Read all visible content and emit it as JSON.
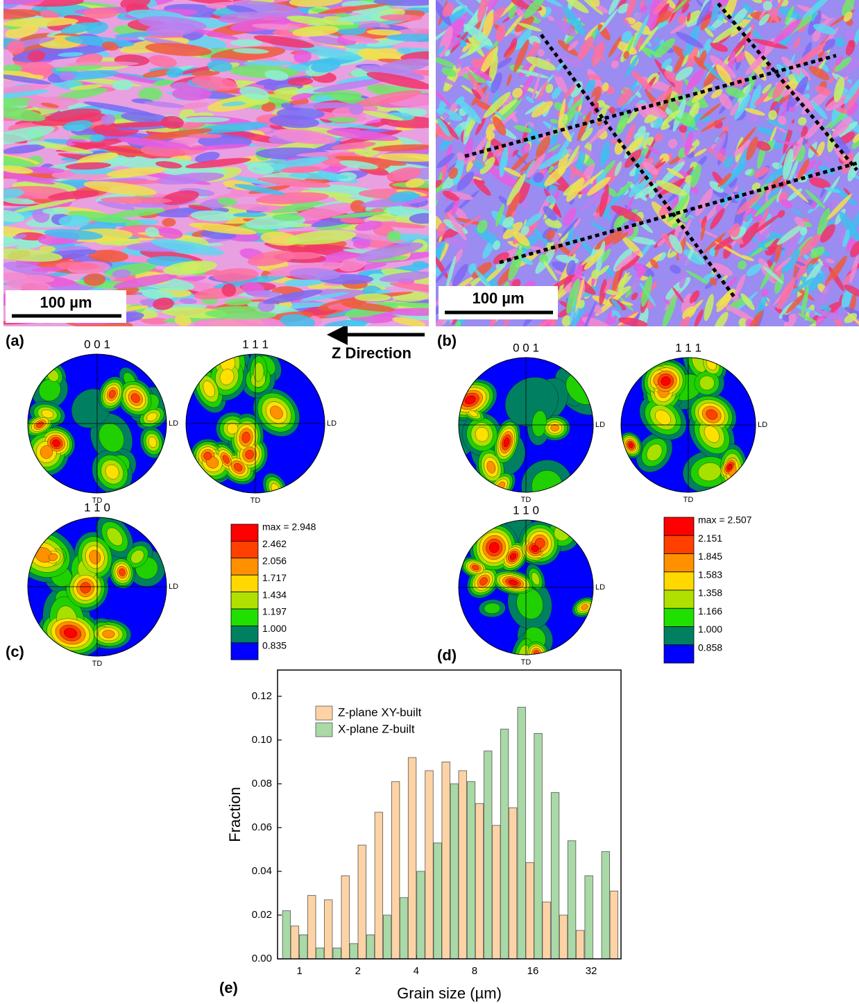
{
  "maps": {
    "a": {
      "label": "(a)",
      "scale_bar": "100 µm"
    },
    "b": {
      "label": "(b)",
      "scale_bar": "100 µm"
    },
    "direction": "Z Direction"
  },
  "pole_figures": [
    {
      "label": "(c)",
      "planes": [
        "0 0 1",
        "1 1 1",
        "1 1 0"
      ],
      "ld": "LD",
      "td": "TD",
      "legend": [
        "max = 2.948",
        "2.462",
        "2.056",
        "1.717",
        "1.434",
        "1.197",
        "1.000",
        "0.835"
      ]
    },
    {
      "label": "(d)",
      "planes": [
        "0 0 1",
        "1 1 1",
        "1 1 0"
      ],
      "ld": "LD",
      "td": "TD",
      "legend": [
        "max = 2.507",
        "2.151",
        "1.845",
        "1.583",
        "1.358",
        "1.166",
        "1.000",
        "0.858"
      ]
    }
  ],
  "chart_data": {
    "type": "bar",
    "panel_label": "(e)",
    "x_label": "Grain size (µm)",
    "y_label": "Fraction",
    "x": [
      0.9,
      1.1,
      1.34,
      1.64,
      2.0,
      2.44,
      2.98,
      3.63,
      4.44,
      5.42,
      6.61,
      8.07,
      9.86,
      12.0,
      14.7,
      17.9,
      21.9,
      26.7,
      32.7,
      39.9
    ],
    "log_x": true,
    "xlim": [
      0.77,
      45.6
    ],
    "xticks": [
      1,
      2,
      4,
      8,
      16,
      32
    ],
    "ylim": [
      0,
      0.132
    ],
    "yticks": [
      {
        "value": 0,
        "label": "0.00"
      },
      0.02,
      0.04,
      0.06,
      0.08,
      {
        "value": 0.1,
        "label": "0.10"
      },
      0.12
    ],
    "legend": "upper left",
    "series": [
      {
        "name": "Z-plane XY-built",
        "color": "#fdd3a5",
        "values": [
          0.015,
          0.029,
          0.027,
          0.038,
          0.052,
          0.067,
          0.081,
          0.092,
          0.086,
          0.09,
          0.086,
          0.071,
          0.061,
          0.069,
          0.044,
          0.026,
          0.02,
          0.013,
          0,
          0.031
        ]
      },
      {
        "name": "X-plane Z-built",
        "color": "#a9d9a6",
        "values": [
          0.022,
          0.011,
          0.005,
          0.005,
          0.007,
          0.011,
          0.02,
          0.028,
          0.04,
          0.053,
          0.08,
          0.081,
          0.095,
          0.105,
          0.115,
          0.103,
          0.076,
          0.054,
          0.038,
          0.049
        ]
      }
    ]
  }
}
